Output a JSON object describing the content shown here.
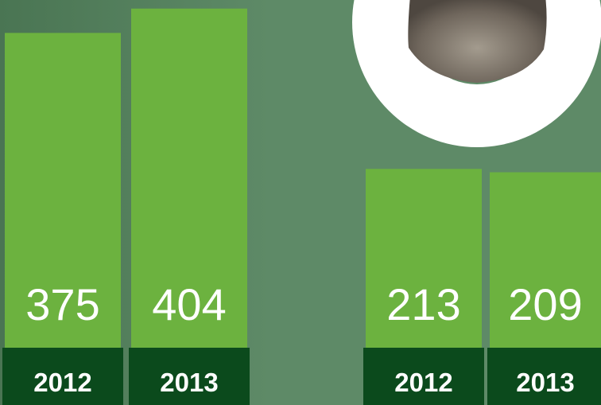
{
  "chart_data": [
    {
      "type": "bar",
      "categories": [
        "2012",
        "2013"
      ],
      "values": [
        375,
        404
      ],
      "color": "#6cb23f"
    },
    {
      "type": "bar",
      "categories": [
        "2012",
        "2013"
      ],
      "values": [
        213,
        209
      ],
      "color": "#6cb23f"
    }
  ]
}
